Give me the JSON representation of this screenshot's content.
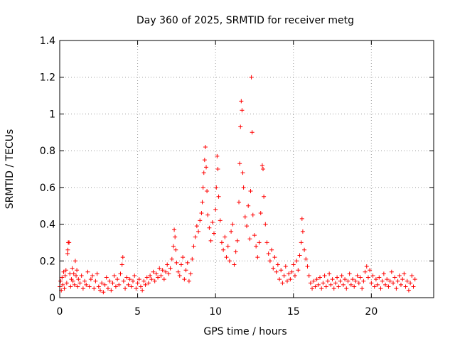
{
  "chart_data": {
    "type": "scatter",
    "title": "Day 360 of 2025, SRMTID for receiver metg",
    "xlabel": "GPS time / hours",
    "ylabel": "SRMTID / TECUs",
    "xlim": [
      0,
      24
    ],
    "ylim": [
      0,
      1.4
    ],
    "xticks": [
      0,
      5,
      10,
      15,
      20
    ],
    "xtick_labels": [
      "0",
      "5",
      "10",
      "15",
      "20"
    ],
    "yticks": [
      0,
      0.2,
      0.4,
      0.6,
      0.8,
      1.0,
      1.2,
      1.4
    ],
    "ytick_labels": [
      "0",
      "0.2",
      "0.4",
      "0.6",
      "0.8",
      "1",
      "1.2",
      "1.4"
    ],
    "grid": true,
    "marker": "+",
    "series": [
      {
        "name": "metg",
        "color": "#ff0000",
        "points": [
          [
            0.0,
            0.06
          ],
          [
            0.05,
            0.09
          ],
          [
            0.1,
            0.04
          ],
          [
            0.15,
            0.11
          ],
          [
            0.2,
            0.07
          ],
          [
            0.25,
            0.14
          ],
          [
            0.3,
            0.05
          ],
          [
            0.35,
            0.12
          ],
          [
            0.4,
            0.15
          ],
          [
            0.45,
            0.08
          ],
          [
            0.5,
            0.24
          ],
          [
            0.52,
            0.26
          ],
          [
            0.55,
            0.3
          ],
          [
            0.6,
            0.3
          ],
          [
            0.65,
            0.13
          ],
          [
            0.7,
            0.06
          ],
          [
            0.75,
            0.1
          ],
          [
            0.8,
            0.16
          ],
          [
            0.85,
            0.09
          ],
          [
            0.9,
            0.13
          ],
          [
            0.95,
            0.07
          ],
          [
            1.0,
            0.2
          ],
          [
            1.05,
            0.12
          ],
          [
            1.1,
            0.15
          ],
          [
            1.15,
            0.06
          ],
          [
            1.2,
            0.1
          ],
          [
            1.3,
            0.08
          ],
          [
            1.4,
            0.12
          ],
          [
            1.5,
            0.05
          ],
          [
            1.6,
            0.09
          ],
          [
            1.7,
            0.07
          ],
          [
            1.8,
            0.14
          ],
          [
            1.9,
            0.06
          ],
          [
            2.0,
            0.1
          ],
          [
            2.1,
            0.12
          ],
          [
            2.2,
            0.05
          ],
          [
            2.3,
            0.09
          ],
          [
            2.4,
            0.13
          ],
          [
            2.5,
            0.06
          ],
          [
            2.6,
            0.04
          ],
          [
            2.7,
            0.08
          ],
          [
            2.8,
            0.03
          ],
          [
            2.9,
            0.07
          ],
          [
            3.0,
            0.11
          ],
          [
            3.1,
            0.05
          ],
          [
            3.2,
            0.09
          ],
          [
            3.3,
            0.04
          ],
          [
            3.4,
            0.08
          ],
          [
            3.5,
            0.12
          ],
          [
            3.6,
            0.06
          ],
          [
            3.7,
            0.1
          ],
          [
            3.8,
            0.07
          ],
          [
            3.9,
            0.13
          ],
          [
            4.0,
            0.18
          ],
          [
            4.05,
            0.22
          ],
          [
            4.1,
            0.09
          ],
          [
            4.2,
            0.05
          ],
          [
            4.3,
            0.11
          ],
          [
            4.4,
            0.07
          ],
          [
            4.5,
            0.1
          ],
          [
            4.6,
            0.06
          ],
          [
            4.7,
            0.09
          ],
          [
            4.8,
            0.12
          ],
          [
            4.9,
            0.05
          ],
          [
            5.0,
            0.08
          ],
          [
            5.1,
            0.1
          ],
          [
            5.2,
            0.06
          ],
          [
            5.3,
            0.04
          ],
          [
            5.4,
            0.09
          ],
          [
            5.5,
            0.07
          ],
          [
            5.6,
            0.11
          ],
          [
            5.7,
            0.08
          ],
          [
            5.8,
            0.12
          ],
          [
            5.9,
            0.1
          ],
          [
            6.0,
            0.14
          ],
          [
            6.1,
            0.09
          ],
          [
            6.2,
            0.13
          ],
          [
            6.3,
            0.11
          ],
          [
            6.4,
            0.16
          ],
          [
            6.5,
            0.12
          ],
          [
            6.6,
            0.15
          ],
          [
            6.7,
            0.1
          ],
          [
            6.8,
            0.14
          ],
          [
            6.9,
            0.18
          ],
          [
            7.0,
            0.13
          ],
          [
            7.1,
            0.16
          ],
          [
            7.2,
            0.21
          ],
          [
            7.3,
            0.28
          ],
          [
            7.35,
            0.37
          ],
          [
            7.4,
            0.33
          ],
          [
            7.45,
            0.26
          ],
          [
            7.5,
            0.19
          ],
          [
            7.6,
            0.14
          ],
          [
            7.7,
            0.12
          ],
          [
            7.8,
            0.18
          ],
          [
            7.9,
            0.22
          ],
          [
            8.0,
            0.1
          ],
          [
            8.1,
            0.15
          ],
          [
            8.2,
            0.19
          ],
          [
            8.3,
            0.09
          ],
          [
            8.4,
            0.13
          ],
          [
            8.5,
            0.21
          ],
          [
            8.6,
            0.28
          ],
          [
            8.7,
            0.33
          ],
          [
            8.8,
            0.39
          ],
          [
            8.9,
            0.36
          ],
          [
            9.0,
            0.42
          ],
          [
            9.1,
            0.46
          ],
          [
            9.15,
            0.52
          ],
          [
            9.2,
            0.6
          ],
          [
            9.25,
            0.68
          ],
          [
            9.3,
            0.75
          ],
          [
            9.35,
            0.82
          ],
          [
            9.4,
            0.71
          ],
          [
            9.45,
            0.58
          ],
          [
            9.5,
            0.45
          ],
          [
            9.6,
            0.38
          ],
          [
            9.7,
            0.31
          ],
          [
            9.8,
            0.41
          ],
          [
            9.9,
            0.35
          ],
          [
            10.0,
            0.48
          ],
          [
            10.05,
            0.6
          ],
          [
            10.1,
            0.77
          ],
          [
            10.15,
            0.7
          ],
          [
            10.2,
            0.55
          ],
          [
            10.3,
            0.42
          ],
          [
            10.4,
            0.3
          ],
          [
            10.5,
            0.26
          ],
          [
            10.6,
            0.33
          ],
          [
            10.7,
            0.22
          ],
          [
            10.8,
            0.28
          ],
          [
            10.9,
            0.2
          ],
          [
            11.0,
            0.36
          ],
          [
            11.1,
            0.4
          ],
          [
            11.2,
            0.18
          ],
          [
            11.3,
            0.25
          ],
          [
            11.4,
            0.31
          ],
          [
            11.5,
            0.52
          ],
          [
            11.55,
            0.73
          ],
          [
            11.6,
            0.93
          ],
          [
            11.65,
            1.07
          ],
          [
            11.7,
            1.02
          ],
          [
            11.75,
            0.68
          ],
          [
            11.8,
            0.6
          ],
          [
            11.9,
            0.44
          ],
          [
            12.0,
            0.39
          ],
          [
            12.1,
            0.5
          ],
          [
            12.2,
            0.32
          ],
          [
            12.25,
            0.58
          ],
          [
            12.3,
            1.2
          ],
          [
            12.35,
            0.9
          ],
          [
            12.4,
            0.45
          ],
          [
            12.5,
            0.34
          ],
          [
            12.6,
            0.28
          ],
          [
            12.7,
            0.22
          ],
          [
            12.8,
            0.3
          ],
          [
            12.9,
            0.46
          ],
          [
            13.0,
            0.72
          ],
          [
            13.05,
            0.7
          ],
          [
            13.1,
            0.55
          ],
          [
            13.2,
            0.4
          ],
          [
            13.3,
            0.3
          ],
          [
            13.4,
            0.24
          ],
          [
            13.5,
            0.2
          ],
          [
            13.6,
            0.26
          ],
          [
            13.7,
            0.16
          ],
          [
            13.8,
            0.22
          ],
          [
            13.9,
            0.14
          ],
          [
            14.0,
            0.18
          ],
          [
            14.1,
            0.1
          ],
          [
            14.2,
            0.15
          ],
          [
            14.3,
            0.08
          ],
          [
            14.4,
            0.12
          ],
          [
            14.5,
            0.17
          ],
          [
            14.6,
            0.09
          ],
          [
            14.7,
            0.13
          ],
          [
            14.8,
            0.1
          ],
          [
            14.9,
            0.14
          ],
          [
            15.0,
            0.18
          ],
          [
            15.1,
            0.12
          ],
          [
            15.2,
            0.2
          ],
          [
            15.3,
            0.15
          ],
          [
            15.4,
            0.23
          ],
          [
            15.5,
            0.3
          ],
          [
            15.55,
            0.43
          ],
          [
            15.6,
            0.36
          ],
          [
            15.7,
            0.26
          ],
          [
            15.8,
            0.21
          ],
          [
            15.9,
            0.17
          ],
          [
            16.0,
            0.12
          ],
          [
            16.1,
            0.08
          ],
          [
            16.2,
            0.05
          ],
          [
            16.3,
            0.09
          ],
          [
            16.4,
            0.06
          ],
          [
            16.5,
            0.1
          ],
          [
            16.6,
            0.07
          ],
          [
            16.7,
            0.11
          ],
          [
            16.8,
            0.05
          ],
          [
            16.9,
            0.08
          ],
          [
            17.0,
            0.12
          ],
          [
            17.1,
            0.06
          ],
          [
            17.2,
            0.09
          ],
          [
            17.3,
            0.13
          ],
          [
            17.4,
            0.07
          ],
          [
            17.5,
            0.1
          ],
          [
            17.6,
            0.05
          ],
          [
            17.7,
            0.08
          ],
          [
            17.8,
            0.11
          ],
          [
            17.9,
            0.06
          ],
          [
            18.0,
            0.09
          ],
          [
            18.1,
            0.12
          ],
          [
            18.2,
            0.07
          ],
          [
            18.3,
            0.1
          ],
          [
            18.4,
            0.05
          ],
          [
            18.5,
            0.09
          ],
          [
            18.6,
            0.13
          ],
          [
            18.7,
            0.07
          ],
          [
            18.8,
            0.1
          ],
          [
            18.9,
            0.06
          ],
          [
            19.0,
            0.09
          ],
          [
            19.1,
            0.12
          ],
          [
            19.2,
            0.08
          ],
          [
            19.3,
            0.11
          ],
          [
            19.4,
            0.05
          ],
          [
            19.5,
            0.09
          ],
          [
            19.6,
            0.14
          ],
          [
            19.7,
            0.17
          ],
          [
            19.8,
            0.11
          ],
          [
            19.9,
            0.15
          ],
          [
            20.0,
            0.08
          ],
          [
            20.1,
            0.12
          ],
          [
            20.2,
            0.06
          ],
          [
            20.3,
            0.1
          ],
          [
            20.4,
            0.07
          ],
          [
            20.5,
            0.11
          ],
          [
            20.6,
            0.05
          ],
          [
            20.7,
            0.09
          ],
          [
            20.8,
            0.13
          ],
          [
            20.9,
            0.07
          ],
          [
            21.0,
            0.1
          ],
          [
            21.1,
            0.06
          ],
          [
            21.2,
            0.09
          ],
          [
            21.3,
            0.14
          ],
          [
            21.4,
            0.08
          ],
          [
            21.5,
            0.11
          ],
          [
            21.6,
            0.05
          ],
          [
            21.7,
            0.09
          ],
          [
            21.8,
            0.12
          ],
          [
            21.9,
            0.07
          ],
          [
            22.0,
            0.1
          ],
          [
            22.1,
            0.13
          ],
          [
            22.2,
            0.06
          ],
          [
            22.3,
            0.09
          ],
          [
            22.4,
            0.04
          ],
          [
            22.5,
            0.08
          ],
          [
            22.6,
            0.12
          ],
          [
            22.7,
            0.06
          ],
          [
            22.8,
            0.1
          ]
        ]
      }
    ]
  }
}
